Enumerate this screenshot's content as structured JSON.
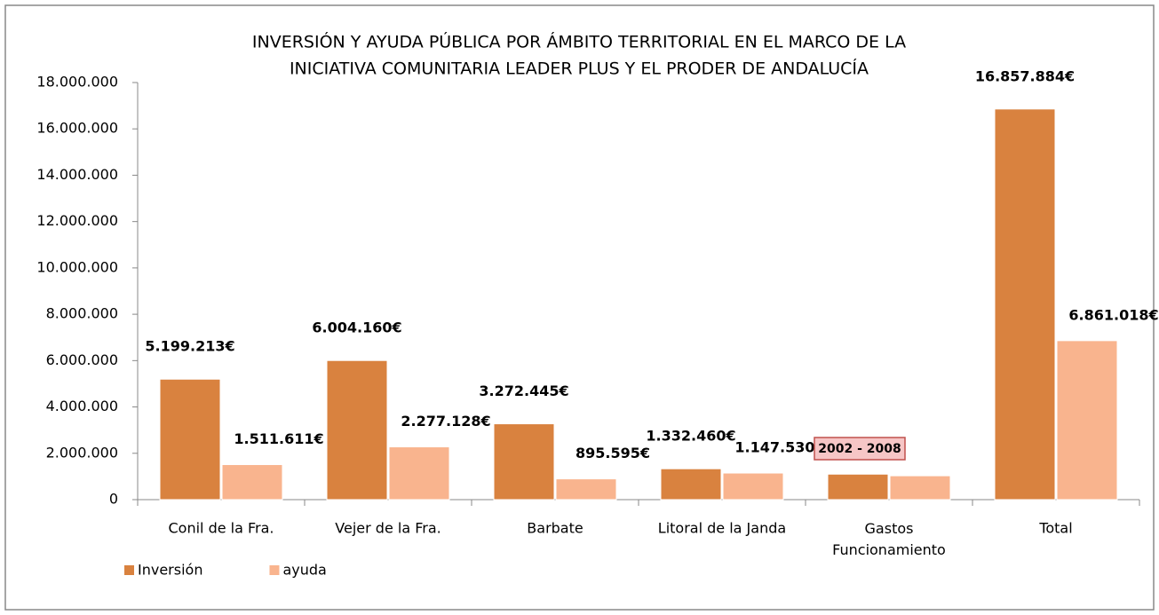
{
  "chart_data": {
    "type": "bar",
    "title": [
      "INVERSIÓN Y AYUDA PÚBLICA POR ÁMBITO TERRITORIAL EN EL MARCO DE LA",
      "INICIATIVA COMUNITARIA LEADER PLUS Y EL PRODER DE ANDALUCÍA"
    ],
    "categories": [
      "Conil de la Fra.",
      "Vejer de la Fra.",
      "Barbate",
      "Litoral de la Janda",
      "Gastos Funcionamiento",
      "Total"
    ],
    "series": [
      {
        "name": "Inversión",
        "color": "#d9823f",
        "values": [
          5199213,
          6004160,
          3272445,
          1332460,
          1100000,
          16857884
        ],
        "value_labels": [
          "5.199.213€",
          "6.004.160€",
          "3.272.445€",
          "1.332.460€",
          null,
          "16.857.884€"
        ]
      },
      {
        "name": "ayuda",
        "color": "#f9b48e",
        "values": [
          1511611,
          2277128,
          895595,
          1147530,
          1030000,
          6861018
        ],
        "value_labels": [
          "1.511.611€",
          "2.277.128€",
          "895.595€",
          "1.147.530€",
          null,
          "6.861.018€"
        ]
      }
    ],
    "ylim": [
      0,
      18000000
    ],
    "yticks": [
      0,
      {
        "value": 2000000,
        "label": "2.000.000"
      },
      {
        "value": 4000000,
        "label": "4.000.000"
      },
      {
        "value": 6000000,
        "label": "6.000.000"
      },
      {
        "value": 8000000,
        "label": "8.000.000"
      },
      {
        "value": 10000000,
        "label": "10.000.000"
      },
      {
        "value": 12000000,
        "label": "12.000.000"
      },
      {
        "value": 14000000,
        "label": "14.000.000"
      },
      {
        "value": 16000000,
        "label": "16.000.000"
      },
      {
        "value": 18000000,
        "label": "18.000.000"
      }
    ],
    "annotation": "2002 - 2008",
    "legend": "bottom-left"
  }
}
